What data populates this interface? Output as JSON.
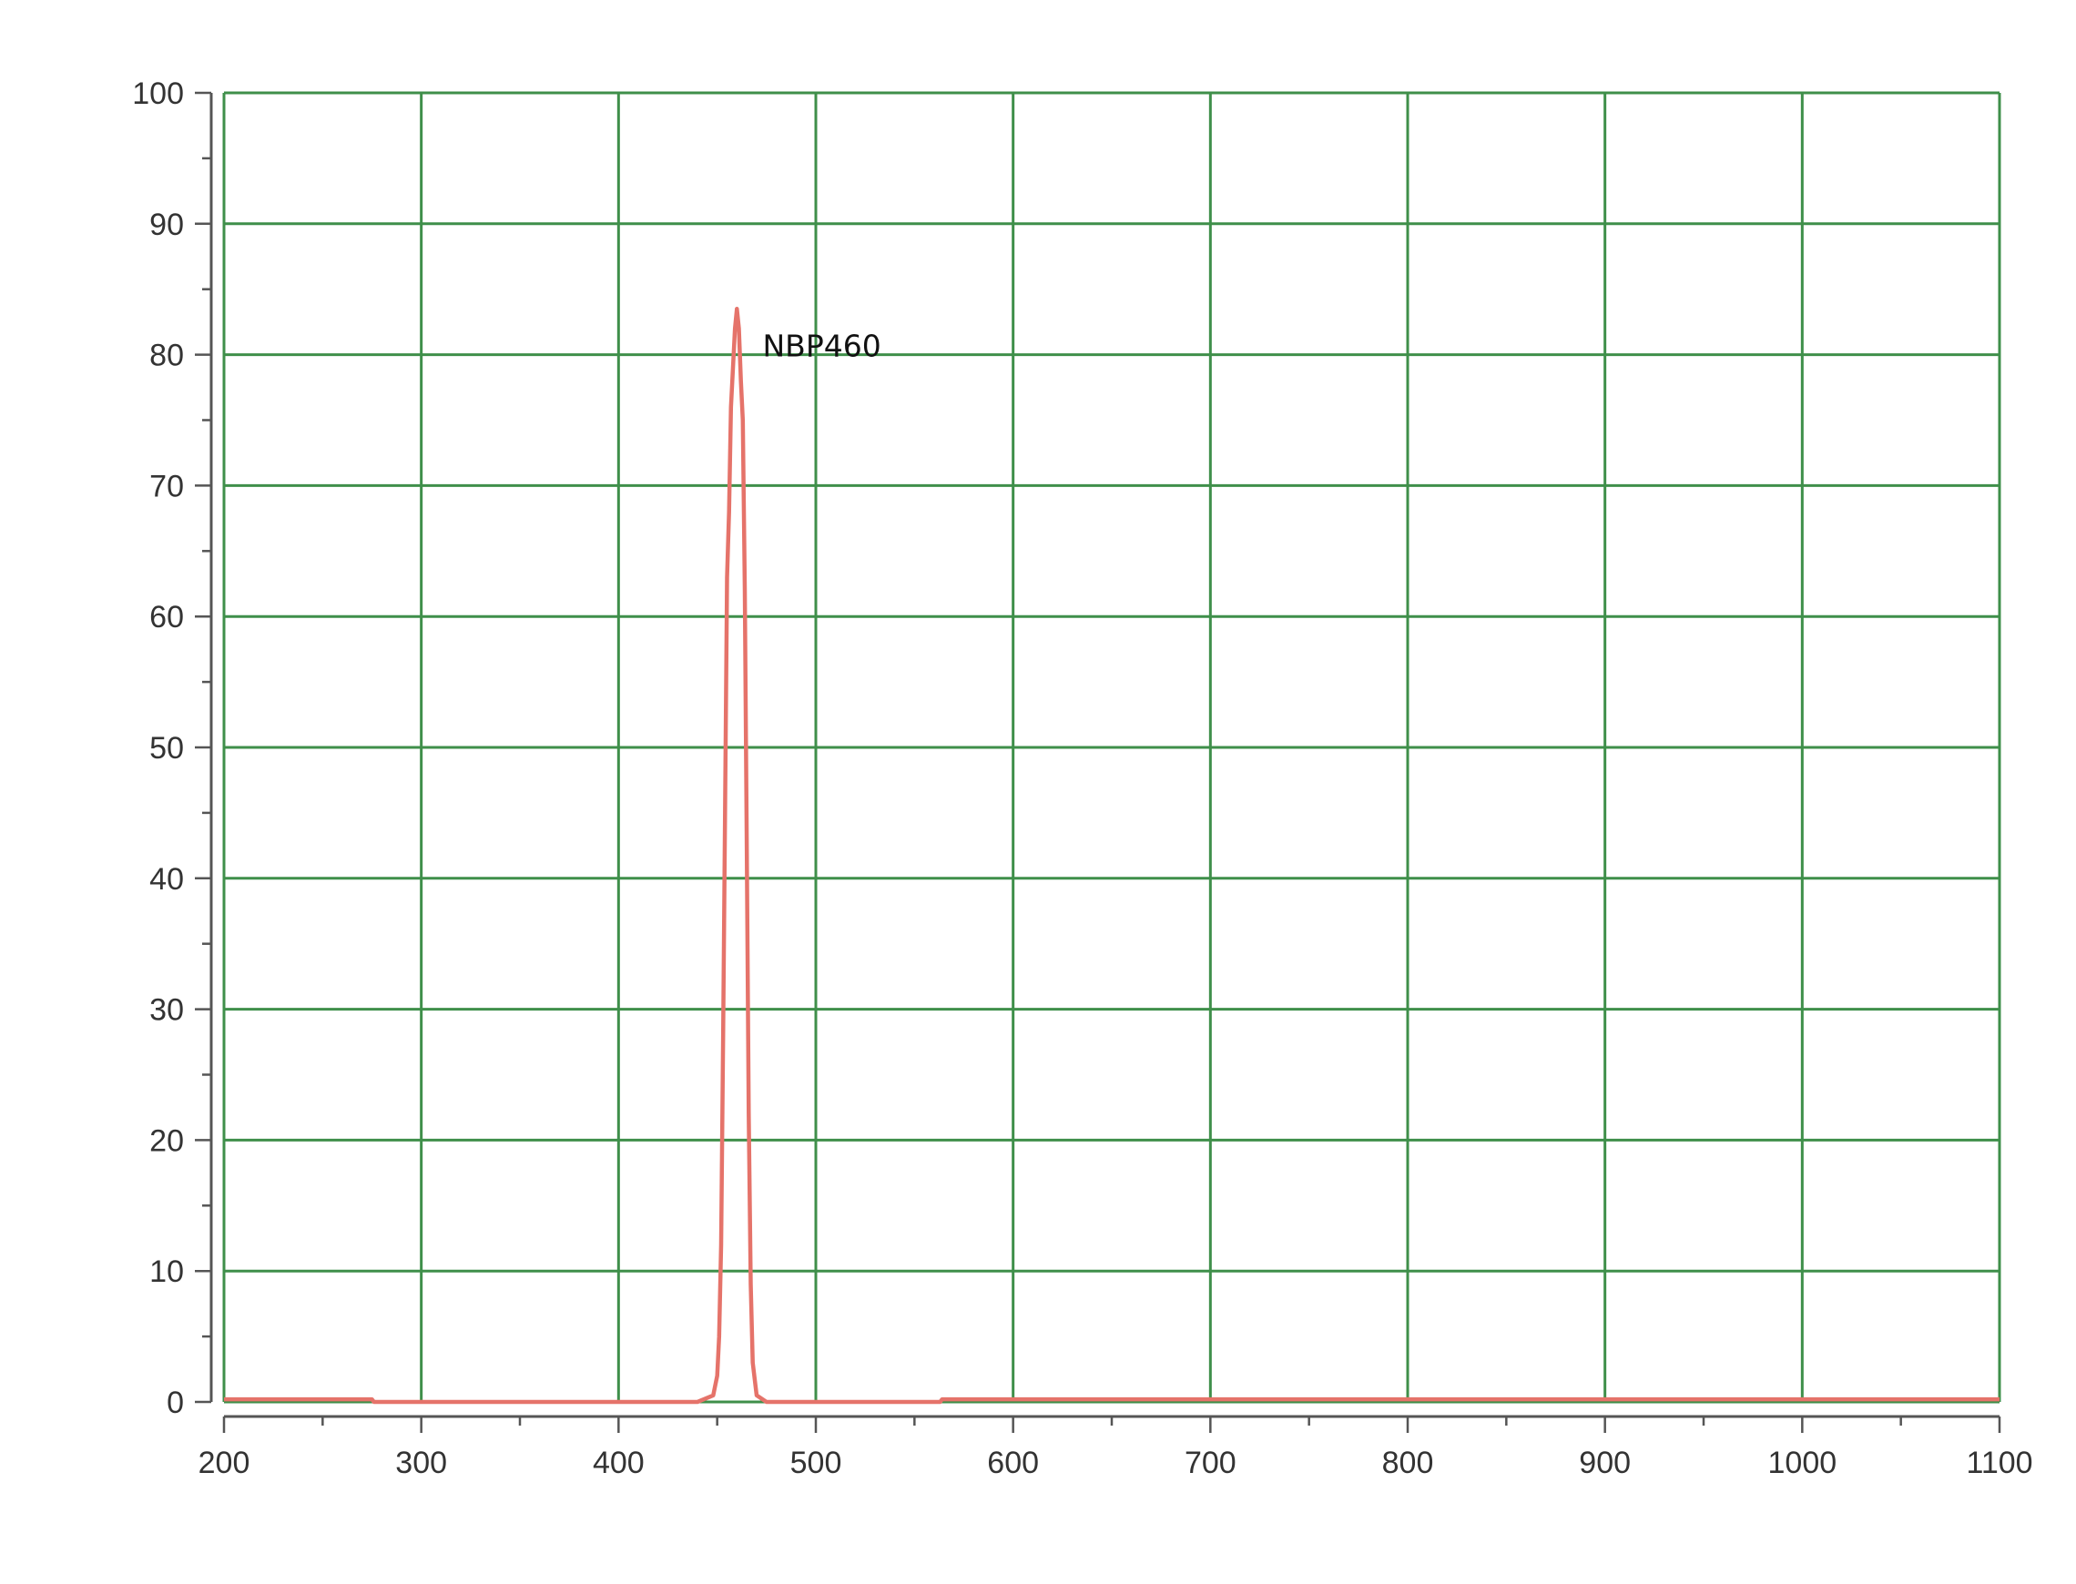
{
  "chart_data": {
    "type": "line",
    "title": "",
    "xlabel": "",
    "ylabel": "",
    "xlim": [
      200,
      1100
    ],
    "ylim": [
      0,
      100
    ],
    "x_ticks": [
      200,
      300,
      400,
      500,
      600,
      700,
      800,
      900,
      1000,
      1100
    ],
    "y_ticks": [
      0,
      10,
      20,
      30,
      40,
      50,
      60,
      70,
      80,
      90,
      100
    ],
    "grid": true,
    "legend": "none",
    "annotations": [
      {
        "text": "NBP460",
        "x": 473,
        "y": 80
      }
    ],
    "series": [
      {
        "color": "#e5736a",
        "points": [
          [
            200,
            0.2
          ],
          [
            275,
            0.2
          ],
          [
            276,
            0
          ],
          [
            440,
            0
          ],
          [
            448,
            0.5
          ],
          [
            450,
            2
          ],
          [
            451,
            5
          ],
          [
            452,
            12
          ],
          [
            453,
            28
          ],
          [
            454,
            45
          ],
          [
            455,
            63
          ],
          [
            456,
            68
          ],
          [
            457,
            76
          ],
          [
            458,
            79
          ],
          [
            459,
            82
          ],
          [
            460,
            83.5
          ],
          [
            461,
            82
          ],
          [
            462,
            78
          ],
          [
            463,
            75
          ],
          [
            464,
            62
          ],
          [
            465,
            42
          ],
          [
            466,
            22
          ],
          [
            467,
            9
          ],
          [
            468,
            3
          ],
          [
            470,
            0.5
          ],
          [
            475,
            0
          ],
          [
            563,
            0
          ],
          [
            564,
            0.2
          ],
          [
            1100,
            0.2
          ]
        ]
      }
    ]
  }
}
